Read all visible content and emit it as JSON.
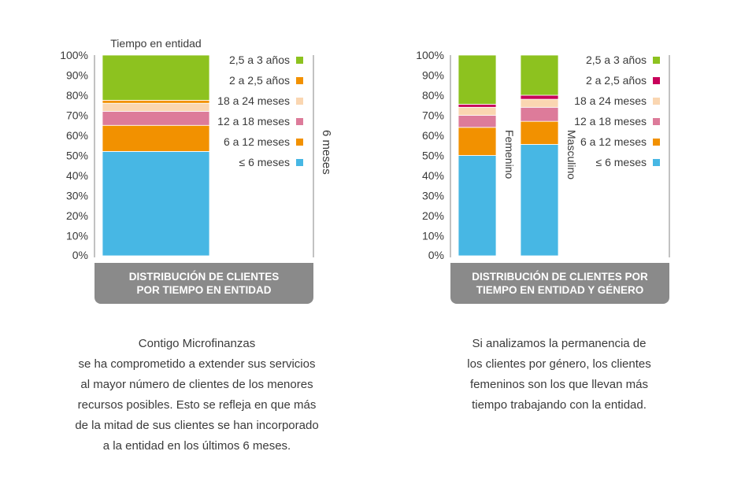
{
  "colors": {
    "2,5 a 3 años": "#8dc21f",
    "2 a 2,5 años": "#f29100",
    "2 a 2,5 años (género)": "#c8005a",
    "18 a 24 meses": "#fad6b1",
    "12 a 18 meses": "#dd7b9a",
    "6 a 12 meses": "#f29100",
    "≤ 6 meses": "#47b7e4",
    "frame": "#9a9a9a",
    "title_bg": "#8a8a8a"
  },
  "chart_data": [
    {
      "type": "bar",
      "stacked": true,
      "title": "DISTRIBUCIÓN DE CLIENTES POR TIEMPO EN ENTIDAD",
      "title_lines": [
        "DISTRIBUCIÓN DE CLIENTES",
        "POR TIEMPO EN ENTIDAD"
      ],
      "legend_title": "Tiempo en entidad",
      "side_label": "6 meses",
      "xlabel": "",
      "ylabel": "",
      "ylim": [
        0,
        100
      ],
      "y_ticks": [
        "0%",
        "10%",
        "20%",
        "30%",
        "40%",
        "50%",
        "60%",
        "70%",
        "80%",
        "90%",
        "100%"
      ],
      "categories": [
        ""
      ],
      "legend_position": "right",
      "series": [
        {
          "name": "≤ 6 meses",
          "values": [
            52
          ]
        },
        {
          "name": "6 a 12 meses",
          "values": [
            13
          ]
        },
        {
          "name": "12 a 18 meses",
          "values": [
            7
          ]
        },
        {
          "name": "18 a 24 meses",
          "values": [
            4
          ]
        },
        {
          "name": "2 a 2,5 años",
          "values": [
            1.5
          ]
        },
        {
          "name": "2,5 a 3 años",
          "values": [
            22.5
          ]
        }
      ]
    },
    {
      "type": "bar",
      "stacked": true,
      "title": "DISTRIBUCIÓN DE CLIENTES POR TIEMPO EN ENTIDAD Y GÉNERO",
      "title_lines": [
        "DISTRIBUCIÓN DE CLIENTES POR",
        "TIEMPO EN ENTIDAD Y GÉNERO"
      ],
      "xlabel": "",
      "ylabel": "",
      "ylim": [
        0,
        100
      ],
      "y_ticks": [
        "0%",
        "10%",
        "20%",
        "30%",
        "40%",
        "50%",
        "60%",
        "70%",
        "80%",
        "90%",
        "100%"
      ],
      "categories": [
        "Femenino",
        "Masculino"
      ],
      "legend_position": "right",
      "series": [
        {
          "name": "≤ 6 meses",
          "values": [
            50,
            55.5
          ]
        },
        {
          "name": "6 a 12 meses",
          "values": [
            14,
            11.5
          ]
        },
        {
          "name": "12 a 18 meses",
          "values": [
            6,
            7
          ]
        },
        {
          "name": "18 a 24 meses",
          "values": [
            4,
            4
          ]
        },
        {
          "name": "2 a 2,5 años",
          "values": [
            1.5,
            2
          ]
        },
        {
          "name": "2,5 a 3 años",
          "values": [
            24.5,
            20
          ]
        }
      ]
    }
  ],
  "text_left": [
    "Contigo Microfinanzas",
    "se ha comprometido a extender sus servicios",
    "al mayor número de clientes de los menores",
    "recursos posibles. Esto se refleja en que más",
    "de la mitad de sus clientes se han incorporado",
    "a la entidad en los últimos 6 meses."
  ],
  "text_right": [
    "Si analizamos la permanencia de",
    "los clientes por género, los clientes",
    "femeninos son los que llevan más",
    "tiempo trabajando con la entidad."
  ]
}
